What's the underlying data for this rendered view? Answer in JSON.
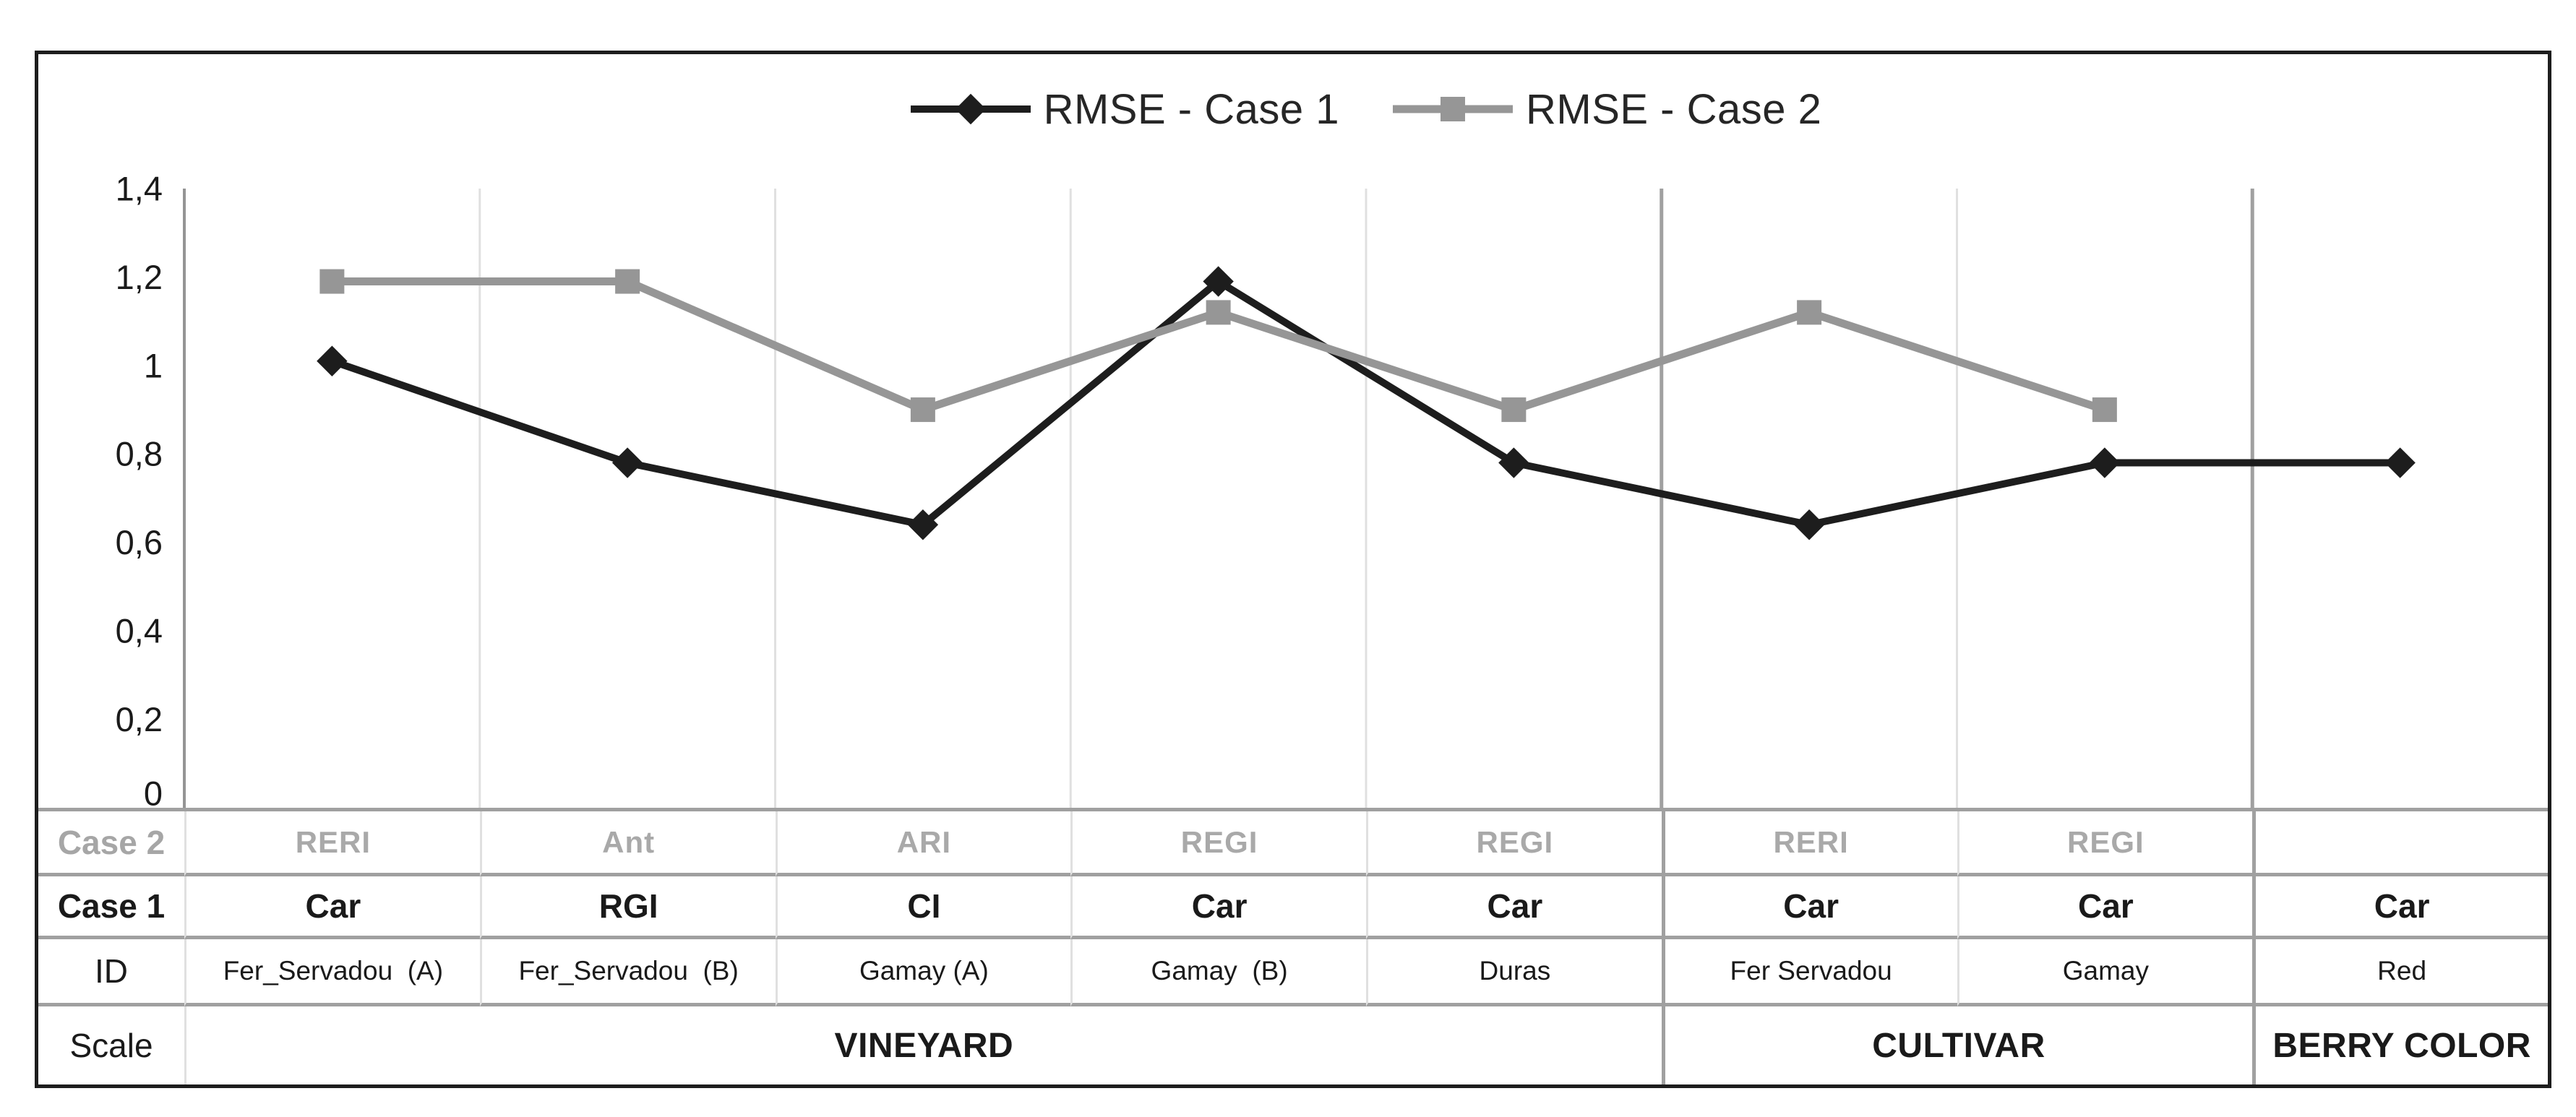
{
  "legend": {
    "items": [
      {
        "label": "RMSE - Case 1",
        "marker": "diamond",
        "color": "#1d1d1d"
      },
      {
        "label": "RMSE - Case 2",
        "marker": "square",
        "color": "#969696"
      }
    ]
  },
  "chart_data": {
    "type": "line",
    "categories": [
      "Fer_Servadou (A)",
      "Fer_Servadou (B)",
      "Gamay (A)",
      "Gamay (B)",
      "Duras",
      "Fer Servadou",
      "Gamay",
      "Red"
    ],
    "series": [
      {
        "name": "RMSE - Case 1",
        "color": "#1d1d1d",
        "marker": "diamond",
        "values": [
          1.01,
          0.78,
          0.64,
          1.19,
          0.78,
          0.64,
          0.78,
          0.78
        ]
      },
      {
        "name": "RMSE - Case 2",
        "color": "#969696",
        "marker": "square",
        "values": [
          1.19,
          1.19,
          0.9,
          1.12,
          0.9,
          1.12,
          0.9,
          null
        ]
      }
    ],
    "ylim": [
      0,
      1.4
    ],
    "y_ticks": [
      "1,4",
      "1,2",
      "1",
      "0,8",
      "0,6",
      "0,4",
      "0,2",
      "0"
    ],
    "decimal_separator": ",",
    "grid": "vertical-only",
    "legend_position": "top-center",
    "scale_group_boundaries_after_columns": [
      5,
      7
    ]
  },
  "table": {
    "rows": [
      {
        "header": "Case 2",
        "cells": [
          "RERI",
          "Ant",
          "ARI",
          "REGI",
          "REGI",
          "RERI",
          "REGI",
          ""
        ]
      },
      {
        "header": "Case 1",
        "cells": [
          "Car",
          "RGI",
          "CI",
          "Car",
          "Car",
          "Car",
          "Car",
          "Car"
        ]
      },
      {
        "header": "ID",
        "cells": [
          "Fer_Servadou  (A)",
          "Fer_Servadou  (B)",
          "Gamay (A)",
          "Gamay  (B)",
          "Duras",
          "Fer Servadou",
          "Gamay",
          "Red"
        ]
      },
      {
        "header": "Scale",
        "groups": [
          {
            "label": "VINEYARD",
            "span": 5
          },
          {
            "label": "CULTIVAR",
            "span": 2
          },
          {
            "label": "BERRY COLOR",
            "span": 1
          }
        ]
      }
    ]
  },
  "colors": {
    "series_case1": "#1d1d1d",
    "series_case2": "#969696",
    "gridline_light": "#e0e0e0",
    "gridline_dark": "#a0a0a0",
    "axis_line": "#949494",
    "frame_border": "#1d1d1d",
    "text_dark": "#1a1a1a",
    "text_gray": "#a6a6a6"
  }
}
